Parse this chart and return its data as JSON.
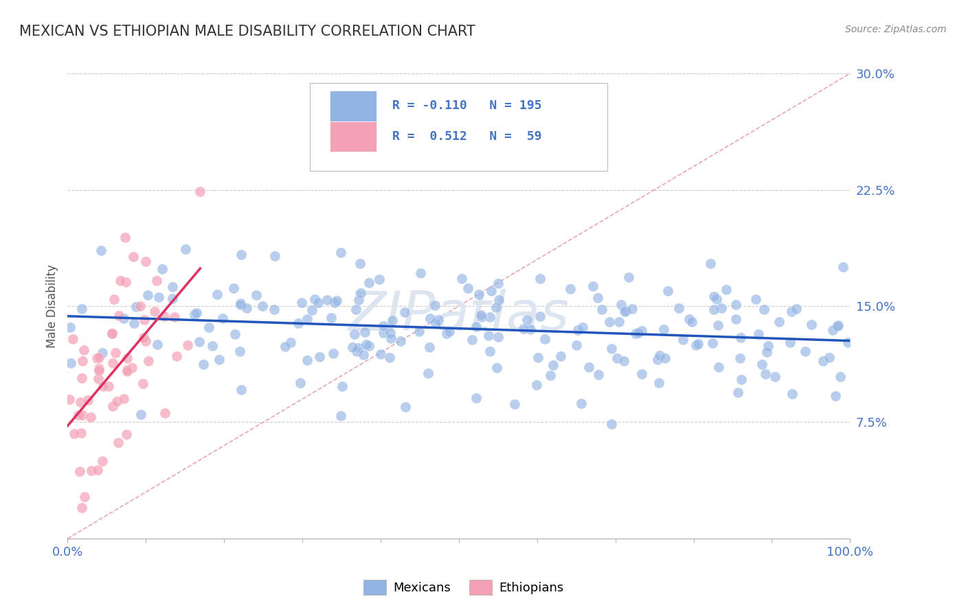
{
  "title": "MEXICAN VS ETHIOPIAN MALE DISABILITY CORRELATION CHART",
  "source": "Source: ZipAtlas.com",
  "ylabel": "Male Disability",
  "xlim": [
    0,
    1
  ],
  "ylim": [
    0,
    0.3
  ],
  "yticks": [
    0.075,
    0.15,
    0.225,
    0.3
  ],
  "ytick_labels": [
    "7.5%",
    "15.0%",
    "22.5%",
    "30.0%"
  ],
  "xtick_labels": [
    "0.0%",
    "100.0%"
  ],
  "xticks": [
    0,
    1
  ],
  "mexican_R": -0.11,
  "mexican_N": 195,
  "ethiopian_R": 0.512,
  "ethiopian_N": 59,
  "mexican_color": "#92b4e3",
  "ethiopian_color": "#f4a0b5",
  "mexican_line_color": "#2255bb",
  "ethiopian_line_color": "#e03060",
  "diagonal_color": "#e08090",
  "background_color": "#ffffff",
  "grid_color": "#cccccc",
  "title_color": "#333333",
  "ylabel_color": "#555555",
  "axis_label_color": "#4472c4",
  "watermark_color": "#dde5f0",
  "legend_color": "#4472c4",
  "legend_N_color": "#e03060"
}
